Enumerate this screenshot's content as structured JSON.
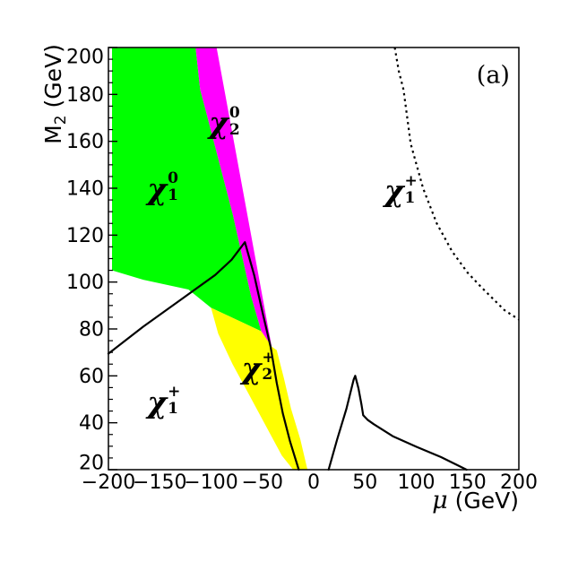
{
  "figure": {
    "panel_label": "(a)",
    "background_color": "#ffffff"
  },
  "chart_data": {
    "type": "area",
    "title": "",
    "xlabel": "μ (GeV)",
    "ylabel": "M2 (GeV)",
    "xlabel_parts": {
      "symbol": "μ",
      "rest": " (GeV)"
    },
    "ylabel_parts": {
      "main": "M",
      "sub": "2",
      "rest": " (GeV)"
    },
    "xlim": [
      -200,
      200
    ],
    "ylim": [
      20,
      200
    ],
    "grid": false,
    "legend": "none",
    "x_ticks": [
      {
        "v": -200,
        "label": "−200"
      },
      {
        "v": -150,
        "label": "−150"
      },
      {
        "v": -100,
        "label": "−100"
      },
      {
        "v": -50,
        "label": "−50"
      },
      {
        "v": 0,
        "label": "0"
      },
      {
        "v": 50,
        "label": "50"
      },
      {
        "v": 100,
        "label": "100"
      },
      {
        "v": 150,
        "label": "150"
      },
      {
        "v": 200,
        "label": "200"
      }
    ],
    "y_ticks": [
      {
        "v": 20,
        "label": "20"
      },
      {
        "v": 40,
        "label": "40"
      },
      {
        "v": 60,
        "label": "60"
      },
      {
        "v": 80,
        "label": "80"
      },
      {
        "v": 100,
        "label": "100"
      },
      {
        "v": 120,
        "label": "120"
      },
      {
        "v": 140,
        "label": "140"
      },
      {
        "v": 160,
        "label": "160"
      },
      {
        "v": 180,
        "label": "180"
      },
      {
        "v": 200,
        "label": "200"
      }
    ],
    "y_minor_tick_step": 5,
    "colors": {
      "chi10_region": "#00ff00",
      "chi20_region": "#ff00ff",
      "chi2plus_region": "#ffff00",
      "curve_color": "#000000",
      "frame_color": "#000000"
    },
    "regions": [
      {
        "name": "neutralino1-region",
        "particle": "chi_1^0",
        "color": "#00ff00",
        "points": [
          [
            -196.5,
            200
          ],
          [
            -115,
            200
          ],
          [
            -110.6,
            182
          ],
          [
            -106.3,
            175
          ],
          [
            -78.6,
            128.5
          ],
          [
            -61,
            94
          ],
          [
            -51,
            79
          ],
          [
            -100,
            89
          ],
          [
            -122,
            96.8
          ],
          [
            -166,
            101
          ],
          [
            -196.5,
            105
          ]
        ]
      },
      {
        "name": "neutralino2-region",
        "particle": "chi_2^0",
        "color": "#ff00ff",
        "points": [
          [
            -115,
            200
          ],
          [
            -94.6,
            200
          ],
          [
            -41,
            72.5
          ],
          [
            -51,
            79
          ],
          [
            -61,
            94
          ],
          [
            -78.6,
            128.5
          ],
          [
            -106.3,
            175
          ],
          [
            -110.6,
            182
          ]
        ]
      },
      {
        "name": "chargino2-region",
        "particle": "chi_2^+",
        "color": "#ffff00",
        "points": [
          [
            -100,
            89
          ],
          [
            -51,
            79
          ],
          [
            -41,
            72.5
          ],
          [
            -36,
            71
          ],
          [
            -29,
            59
          ],
          [
            -22,
            46
          ],
          [
            -13,
            33
          ],
          [
            -6,
            20
          ],
          [
            -20,
            20
          ],
          [
            -31,
            26
          ],
          [
            -47,
            39
          ],
          [
            -63,
            52
          ],
          [
            -79,
            65
          ],
          [
            -93,
            78
          ]
        ]
      }
    ],
    "curves": [
      {
        "name": "solid-contour-left",
        "style": "solid",
        "points": [
          [
            -200,
            69.5
          ],
          [
            -166,
            81
          ],
          [
            -131,
            92
          ],
          [
            -96,
            103
          ],
          [
            -80,
            109.5
          ],
          [
            -67,
            117
          ],
          [
            -58,
            103
          ],
          [
            -49.5,
            86.5
          ],
          [
            -42,
            72.5
          ],
          [
            -36,
            57
          ],
          [
            -30,
            44
          ],
          [
            -23,
            32
          ],
          [
            -14.5,
            20
          ]
        ]
      },
      {
        "name": "solid-contour-right",
        "style": "solid",
        "points": [
          [
            14.6,
            20
          ],
          [
            23,
            33
          ],
          [
            32,
            46
          ],
          [
            39,
            58.5
          ],
          [
            40.5,
            60
          ],
          [
            43.7,
            54.7
          ],
          [
            46.6,
            47.7
          ],
          [
            48.3,
            43.2
          ],
          [
            52.5,
            41.3
          ],
          [
            58.5,
            39.4
          ],
          [
            77,
            34.3
          ],
          [
            100,
            29.8
          ],
          [
            124,
            25.4
          ],
          [
            149,
            20
          ]
        ]
      },
      {
        "name": "dotted-contour",
        "style": "dotted",
        "points": [
          [
            79,
            200
          ],
          [
            83,
            190
          ],
          [
            87.6,
            182
          ],
          [
            94.6,
            159
          ],
          [
            106.6,
            140
          ],
          [
            120,
            125
          ],
          [
            135,
            113
          ],
          [
            150,
            104
          ],
          [
            163,
            98
          ],
          [
            186,
            88
          ],
          [
            200,
            84
          ]
        ]
      }
    ],
    "labels": [
      {
        "name": "label-neutralino1",
        "chi": "χ",
        "sub": "1",
        "sup": "0",
        "x": -147,
        "y": 140
      },
      {
        "name": "label-neutralino2",
        "chi": "χ",
        "sub": "2",
        "sup": "0",
        "x": -87,
        "y": 168
      },
      {
        "name": "label-chargino1-left",
        "chi": "χ",
        "sub": "1",
        "sup": "+",
        "x": -146,
        "y": 49
      },
      {
        "name": "label-chargino2",
        "chi": "χ",
        "sub": "2",
        "sup": "+",
        "x": -54,
        "y": 63.5
      },
      {
        "name": "label-chargino1-right",
        "chi": "χ",
        "sub": "1",
        "sup": "+",
        "x": 85,
        "y": 139
      }
    ],
    "panel_label_pos": {
      "x": 175,
      "y": 188
    }
  }
}
